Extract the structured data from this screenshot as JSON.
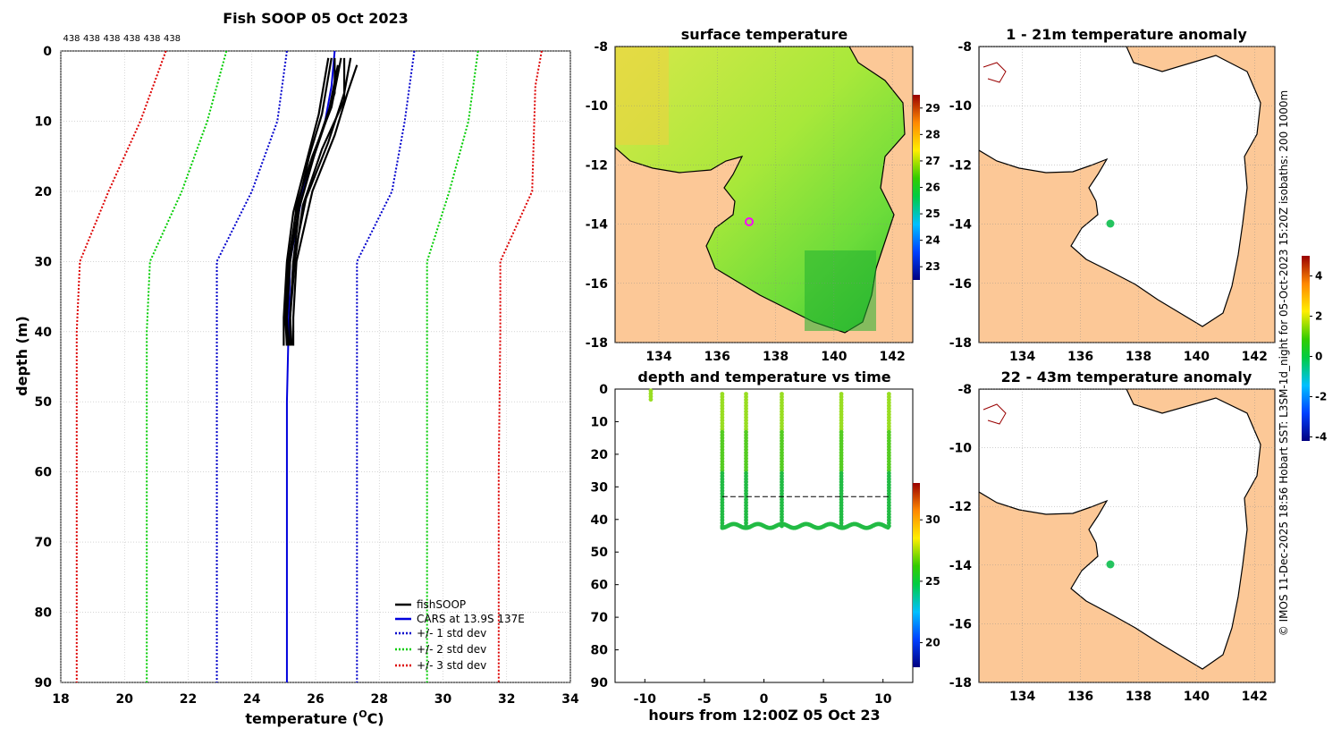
{
  "profile_plot": {
    "title": "Fish SOOP 05 Oct 2023",
    "top_counts": [
      "438",
      "438",
      "438",
      "438",
      "438",
      "438"
    ],
    "xlabel_prefix": "temperature (",
    "xlabel_deg": "O",
    "xlabel_suffix": "C)",
    "ylabel": "depth (m)",
    "xticks": [
      18,
      20,
      22,
      24,
      26,
      28,
      30,
      32,
      34
    ],
    "yticks": [
      0,
      10,
      20,
      30,
      40,
      50,
      60,
      70,
      80,
      90
    ],
    "xlim": [
      18,
      34
    ],
    "ylim": [
      0,
      90
    ],
    "legend": [
      "fishSOOP",
      "CARS at 13.9S 137E",
      "+/- 1 std dev",
      "+/- 2 std dev",
      "+/- 3 std dev"
    ]
  },
  "chart_data": [
    {
      "type": "line",
      "title": "Fish SOOP 05 Oct 2023",
      "xlabel": "temperature (oC)",
      "ylabel": "depth (m)",
      "xlim": [
        18,
        34
      ],
      "ylim": [
        0,
        90
      ],
      "series": [
        {
          "name": "CARS at 13.9S 137E",
          "color": "#0000dd",
          "dash": "solid",
          "temp": [
            26.6,
            26.5,
            26.3,
            25.6,
            25.2,
            25.15,
            25.1,
            25.1,
            25.1,
            25.1
          ],
          "depth": [
            0,
            5,
            10,
            20,
            30,
            40,
            50,
            60,
            80,
            90
          ]
        },
        {
          "name": "+1 std dev",
          "color": "#0000cc",
          "dash": "dot",
          "temp": [
            29.1,
            28.8,
            28.4,
            27.3,
            27.3,
            27.3,
            27.3
          ],
          "depth": [
            0,
            10,
            20,
            30,
            40,
            60,
            90
          ]
        },
        {
          "name": "-1 std dev",
          "color": "#0000cc",
          "dash": "dot",
          "temp": [
            25.1,
            24.8,
            24.0,
            22.9,
            22.9,
            22.9,
            22.9
          ],
          "depth": [
            0,
            10,
            20,
            30,
            40,
            60,
            90
          ]
        },
        {
          "name": "+2 std dev",
          "color": "#00cc00",
          "dash": "dot",
          "temp": [
            31.1,
            30.8,
            30.2,
            29.5,
            29.5,
            29.5,
            29.5
          ],
          "depth": [
            0,
            10,
            20,
            30,
            40,
            60,
            90
          ]
        },
        {
          "name": "-2 std dev",
          "color": "#00cc00",
          "dash": "dot",
          "temp": [
            23.2,
            22.6,
            21.8,
            20.8,
            20.7,
            20.7,
            20.7
          ],
          "depth": [
            0,
            10,
            20,
            30,
            40,
            60,
            90
          ]
        },
        {
          "name": "+3 std dev",
          "color": "#dd0000",
          "dash": "dot",
          "temp": [
            33.1,
            32.9,
            32.8,
            31.8,
            31.8,
            31.75,
            31.75
          ],
          "depth": [
            0,
            5,
            20,
            30,
            40,
            60,
            90
          ]
        },
        {
          "name": "-3 std dev",
          "color": "#dd0000",
          "dash": "dot",
          "temp": [
            21.3,
            20.5,
            19.5,
            18.6,
            18.5,
            18.5,
            18.5
          ],
          "depth": [
            0,
            10,
            20,
            30,
            40,
            60,
            90
          ]
        }
      ],
      "fishsoop_profiles": [
        {
          "temp": [
            26.8,
            26.5,
            25.9,
            25.4,
            25.2,
            25.1,
            25.15
          ],
          "depth": [
            1,
            8,
            15,
            22,
            30,
            38,
            42
          ]
        },
        {
          "temp": [
            26.6,
            26.6,
            26.0,
            25.5,
            25.3,
            25.2,
            25.2
          ],
          "depth": [
            1,
            6,
            14,
            22,
            30,
            38,
            42
          ]
        },
        {
          "temp": [
            26.9,
            26.9,
            26.2,
            25.6,
            25.35,
            25.2,
            25.2
          ],
          "depth": [
            1,
            7,
            14,
            22,
            30,
            38,
            42
          ]
        },
        {
          "temp": [
            26.4,
            26.1,
            25.7,
            25.3,
            25.1,
            25.0,
            25.0
          ],
          "depth": [
            1,
            9,
            16,
            23,
            30,
            38,
            42
          ]
        },
        {
          "temp": [
            27.1,
            26.9,
            26.4,
            25.7,
            25.3,
            25.2,
            25.25
          ],
          "depth": [
            1,
            6,
            13,
            21,
            30,
            38,
            42
          ]
        },
        {
          "temp": [
            26.5,
            26.2,
            25.8,
            25.35,
            25.15,
            25.05,
            25.1
          ],
          "depth": [
            1,
            9,
            15,
            24,
            30,
            38,
            42
          ]
        },
        {
          "temp": [
            27.3,
            27.0,
            26.6,
            25.9,
            25.4,
            25.3,
            25.3
          ],
          "depth": [
            2,
            6,
            12,
            20,
            30,
            38,
            42
          ]
        },
        {
          "temp": [
            26.7,
            26.4,
            25.95,
            25.45,
            25.2,
            25.1,
            25.1
          ],
          "depth": [
            2,
            9,
            15,
            23,
            30,
            38,
            42
          ]
        }
      ]
    },
    {
      "type": "scatter",
      "title": "depth and temperature vs time",
      "xlabel": "hours from 12:00Z 05 Oct 23",
      "xlim": [
        -12.5,
        12.5
      ],
      "ylim": [
        0,
        90
      ],
      "xticks": [
        -10,
        -5,
        0,
        5,
        10
      ],
      "yticks": [
        0,
        10,
        20,
        30,
        40,
        50,
        60,
        70,
        80,
        90
      ],
      "colorbar_ticks": [
        20,
        25,
        30
      ],
      "colorbar_range": [
        18,
        33
      ],
      "reference_line_depth": 33,
      "reference_line_x": [
        -3.5,
        10.5
      ],
      "cast_times": [
        -9.5,
        -3.5,
        -1.5,
        1.5,
        6.5,
        10.5
      ],
      "bottom_depth_approx": 42
    },
    {
      "type": "heatmap",
      "title": "surface temperature",
      "xticks": [
        134,
        136,
        138,
        140,
        142
      ],
      "yticks": [
        -8,
        -10,
        -12,
        -14,
        -16,
        -18
      ],
      "xlim": [
        132.5,
        142.7
      ],
      "ylim": [
        -18,
        -8
      ],
      "colorbar_ticks": [
        23,
        24,
        25,
        26,
        27,
        28,
        29
      ],
      "colorbar_range": [
        22.5,
        29.5
      ]
    },
    {
      "type": "heatmap",
      "title": "1 - 21m temperature anomaly",
      "xticks": [
        134,
        136,
        138,
        140,
        142
      ],
      "yticks": [
        -8,
        -10,
        -12,
        -14,
        -16,
        -18
      ],
      "xlim": [
        132.5,
        142.7
      ],
      "ylim": [
        -18,
        -8
      ]
    },
    {
      "type": "heatmap",
      "title": "22 - 43m temperature anomaly",
      "xticks": [
        134,
        136,
        138,
        140,
        142
      ],
      "yticks": [
        -8,
        -10,
        -12,
        -14,
        -16,
        -18
      ],
      "xlim": [
        132.5,
        142.7
      ],
      "ylim": [
        -18,
        -8
      ],
      "colorbar_ticks": [
        -4,
        -2,
        0,
        2,
        4
      ],
      "colorbar_range": [
        -4.2,
        5
      ]
    }
  ],
  "depth_time": {
    "title": "depth and temperature vs time",
    "xlabel": "hours from 12:00Z 05 Oct 23"
  },
  "sst_map": {
    "title": "surface temperature"
  },
  "anom1": {
    "title": "1 - 21m temperature anomaly"
  },
  "anom2": {
    "title": "22 - 43m temperature anomaly"
  },
  "credit": "© IMOS 11-Dec-2025 18:56 Hobart SST: L3SM-1d_night for 05-Oct-2023 15:20Z isobaths: 200  1000m",
  "colors": {
    "land": "#fcc897",
    "sea_sst": "#b4ec3c",
    "anomaly": "#22c55e",
    "cars": "#0000dd"
  }
}
